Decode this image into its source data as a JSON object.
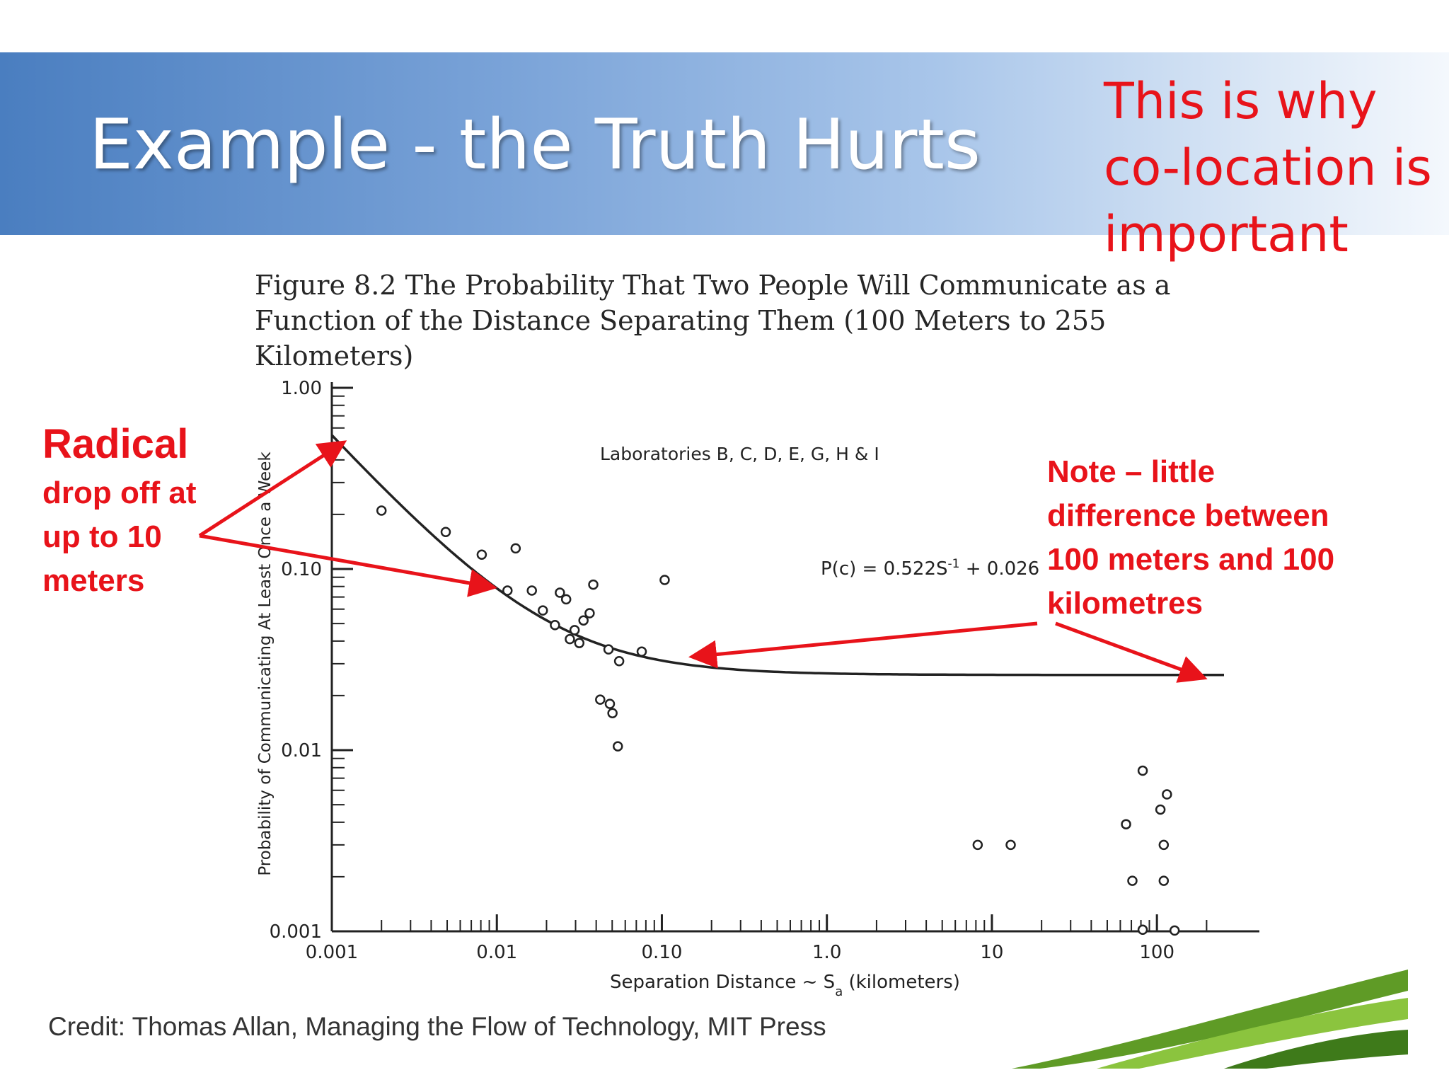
{
  "slide": {
    "title": "Example - the Truth Hurts",
    "callout_top": "This is why co-location is important",
    "figure_caption": "Figure 8.2 The Probability That Two People Will Communicate as a Function of the Distance Separating Them (100 Meters to 255 Kilometers)",
    "note_left_heading": "Radical",
    "note_left_body": "drop off at up to 10 meters",
    "note_right": "Note – little difference between 100 meters and 100 kilometres",
    "credit": "Credit:  Thomas Allan, Managing the Flow of Technology, MIT Press"
  },
  "colors": {
    "banner_start": "#4a7ec0",
    "banner_end": "#f4f8fd",
    "accent_red": "#e8131a",
    "ink": "#222222"
  },
  "chart_data": {
    "type": "scatter",
    "xlabel": "Separation  Distance ~ S",
    "xlabel_subscript": "a",
    "xlabel_unit": "(kilometers)",
    "ylabel": "Probability of Communicating At Least Once a Week",
    "x_scale": "log",
    "y_scale": "log",
    "xlim": [
      0.001,
      255
    ],
    "ylim": [
      0.001,
      1.0
    ],
    "x_ticks": [
      0.001,
      0.01,
      0.1,
      1.0,
      10,
      100
    ],
    "x_tick_labels": [
      "0.001",
      "0.01",
      "0.10",
      "1.0",
      "10",
      "100"
    ],
    "y_ticks": [
      0.001,
      0.01,
      0.1,
      1.0
    ],
    "y_tick_labels": [
      "0.001",
      "0.01",
      "0.10",
      "1.00"
    ],
    "annotation_labs": "Laboratories B, C, D, E, G, H & I",
    "equation": {
      "text_main": "P(c) = 0.522S",
      "text_sup": "-1",
      "text_tail": " + 0.026",
      "a": 0.000522,
      "b": 0.026
    },
    "points": [
      {
        "x": 0.002,
        "y": 0.21
      },
      {
        "x": 0.0049,
        "y": 0.16
      },
      {
        "x": 0.0081,
        "y": 0.12
      },
      {
        "x": 0.013,
        "y": 0.13
      },
      {
        "x": 0.0116,
        "y": 0.076
      },
      {
        "x": 0.0163,
        "y": 0.076
      },
      {
        "x": 0.019,
        "y": 0.059
      },
      {
        "x": 0.0225,
        "y": 0.049
      },
      {
        "x": 0.0241,
        "y": 0.074
      },
      {
        "x": 0.0263,
        "y": 0.068
      },
      {
        "x": 0.0277,
        "y": 0.041
      },
      {
        "x": 0.0296,
        "y": 0.046
      },
      {
        "x": 0.0316,
        "y": 0.039
      },
      {
        "x": 0.0335,
        "y": 0.052
      },
      {
        "x": 0.0365,
        "y": 0.057
      },
      {
        "x": 0.0384,
        "y": 0.082
      },
      {
        "x": 0.0475,
        "y": 0.036
      },
      {
        "x": 0.0551,
        "y": 0.031
      },
      {
        "x": 0.0423,
        "y": 0.019
      },
      {
        "x": 0.0484,
        "y": 0.018
      },
      {
        "x": 0.0502,
        "y": 0.016
      },
      {
        "x": 0.0541,
        "y": 0.0105
      },
      {
        "x": 0.0755,
        "y": 0.035
      },
      {
        "x": 0.104,
        "y": 0.087
      },
      {
        "x": 8.2,
        "y": 0.003
      },
      {
        "x": 13.0,
        "y": 0.003
      },
      {
        "x": 65,
        "y": 0.0039
      },
      {
        "x": 71,
        "y": 0.0019
      },
      {
        "x": 82,
        "y": 0.0077
      },
      {
        "x": 105,
        "y": 0.0047
      },
      {
        "x": 115,
        "y": 0.0057
      },
      {
        "x": 110,
        "y": 0.003
      },
      {
        "x": 110,
        "y": 0.0019
      },
      {
        "x": 82,
        "y": 0.00102
      },
      {
        "x": 128,
        "y": 0.00101
      }
    ]
  }
}
